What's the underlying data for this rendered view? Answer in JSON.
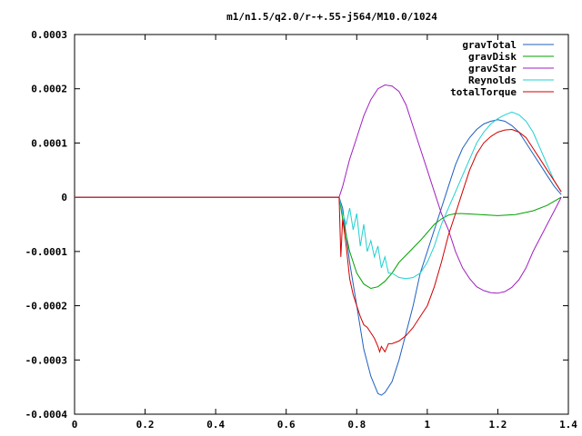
{
  "chart_data": {
    "type": "line",
    "title": "m1/n1.5/q2.0/r-+.55-j564/M10.0/1024",
    "xlabel": "",
    "ylabel": "",
    "xlim": [
      0,
      1.4
    ],
    "ylim": [
      -0.0004,
      0.0003
    ],
    "xticks": [
      0,
      0.2,
      0.4,
      0.6,
      0.8,
      1,
      1.2,
      1.4
    ],
    "xtick_labels": [
      "0",
      "0.2",
      "0.4",
      "0.6",
      "0.8",
      "1",
      "1.2",
      "1.4"
    ],
    "yticks": [
      -0.0004,
      -0.0003,
      -0.0002,
      -0.0001,
      0,
      0.0001,
      0.0002,
      0.0003
    ],
    "ytick_labels": [
      "-0.0004",
      "-0.0003",
      "-0.0002",
      "-0.0001",
      "0",
      "0.0001",
      "0.0002",
      "0.0003"
    ],
    "grid": false,
    "legend_position": "top-right",
    "series": [
      {
        "name": "gravTotal",
        "color": "#1f5fbf",
        "points": [
          [
            0,
            0
          ],
          [
            0.75,
            0
          ],
          [
            0.76,
            -2e-05
          ],
          [
            0.78,
            -0.00012
          ],
          [
            0.8,
            -0.0002
          ],
          [
            0.82,
            -0.00028
          ],
          [
            0.84,
            -0.00033
          ],
          [
            0.86,
            -0.000362
          ],
          [
            0.87,
            -0.000365
          ],
          [
            0.88,
            -0.00036
          ],
          [
            0.9,
            -0.00034
          ],
          [
            0.92,
            -0.0003
          ],
          [
            0.94,
            -0.00025
          ],
          [
            0.96,
            -0.0002
          ],
          [
            0.98,
            -0.00014
          ],
          [
            1.0,
            -0.0001
          ],
          [
            1.02,
            -6e-05
          ],
          [
            1.04,
            -2e-05
          ],
          [
            1.06,
            2e-05
          ],
          [
            1.08,
            6e-05
          ],
          [
            1.1,
            9e-05
          ],
          [
            1.12,
            0.00011
          ],
          [
            1.14,
            0.000125
          ],
          [
            1.16,
            0.000135
          ],
          [
            1.18,
            0.00014
          ],
          [
            1.2,
            0.000143
          ],
          [
            1.22,
            0.00014
          ],
          [
            1.24,
            0.000132
          ],
          [
            1.26,
            0.00012
          ],
          [
            1.28,
            0.0001
          ],
          [
            1.3,
            8e-05
          ],
          [
            1.32,
            6e-05
          ],
          [
            1.34,
            4e-05
          ],
          [
            1.36,
            2e-05
          ],
          [
            1.38,
            5e-06
          ]
        ]
      },
      {
        "name": "gravDisk",
        "color": "#00a000",
        "points": [
          [
            0,
            0
          ],
          [
            0.75,
            0
          ],
          [
            0.76,
            -4e-05
          ],
          [
            0.78,
            -0.0001
          ],
          [
            0.8,
            -0.00014
          ],
          [
            0.82,
            -0.00016
          ],
          [
            0.84,
            -0.000168
          ],
          [
            0.86,
            -0.000165
          ],
          [
            0.88,
            -0.000155
          ],
          [
            0.9,
            -0.00014
          ],
          [
            0.92,
            -0.00012
          ],
          [
            0.95,
            -0.0001
          ],
          [
            0.98,
            -8e-05
          ],
          [
            1.0,
            -6.5e-05
          ],
          [
            1.02,
            -5e-05
          ],
          [
            1.04,
            -4e-05
          ],
          [
            1.06,
            -3.3e-05
          ],
          [
            1.08,
            -3e-05
          ],
          [
            1.1,
            -3e-05
          ],
          [
            1.15,
            -3.2e-05
          ],
          [
            1.2,
            -3.4e-05
          ],
          [
            1.25,
            -3.2e-05
          ],
          [
            1.3,
            -2.5e-05
          ],
          [
            1.34,
            -1.5e-05
          ],
          [
            1.38,
            0
          ]
        ]
      },
      {
        "name": "gravStar",
        "color": "#a020c0",
        "points": [
          [
            0,
            0
          ],
          [
            0.75,
            0
          ],
          [
            0.76,
            2e-05
          ],
          [
            0.78,
            7e-05
          ],
          [
            0.8,
            0.00011
          ],
          [
            0.82,
            0.00015
          ],
          [
            0.84,
            0.00018
          ],
          [
            0.86,
            0.0002
          ],
          [
            0.88,
            0.000207
          ],
          [
            0.9,
            0.000205
          ],
          [
            0.92,
            0.000195
          ],
          [
            0.94,
            0.00017
          ],
          [
            0.96,
            0.00013
          ],
          [
            0.98,
            9e-05
          ],
          [
            1.0,
            5e-05
          ],
          [
            1.02,
            1e-05
          ],
          [
            1.04,
            -3e-05
          ],
          [
            1.06,
            -6e-05
          ],
          [
            1.08,
            -0.0001
          ],
          [
            1.1,
            -0.00013
          ],
          [
            1.12,
            -0.00015
          ],
          [
            1.14,
            -0.000165
          ],
          [
            1.16,
            -0.000172
          ],
          [
            1.18,
            -0.000176
          ],
          [
            1.2,
            -0.000177
          ],
          [
            1.22,
            -0.000174
          ],
          [
            1.24,
            -0.000166
          ],
          [
            1.26,
            -0.000152
          ],
          [
            1.28,
            -0.00013
          ],
          [
            1.3,
            -0.0001
          ],
          [
            1.32,
            -7.5e-05
          ],
          [
            1.34,
            -5e-05
          ],
          [
            1.36,
            -2.5e-05
          ],
          [
            1.38,
            0
          ]
        ]
      },
      {
        "name": "Reynolds",
        "color": "#20d0d0",
        "points": [
          [
            0,
            0
          ],
          [
            0.75,
            0
          ],
          [
            0.76,
            -3e-05
          ],
          [
            0.77,
            -5e-05
          ],
          [
            0.78,
            -2e-05
          ],
          [
            0.79,
            -6e-05
          ],
          [
            0.8,
            -3e-05
          ],
          [
            0.81,
            -9e-05
          ],
          [
            0.82,
            -5e-05
          ],
          [
            0.83,
            -0.0001
          ],
          [
            0.84,
            -8e-05
          ],
          [
            0.85,
            -0.00011
          ],
          [
            0.86,
            -9e-05
          ],
          [
            0.87,
            -0.00013
          ],
          [
            0.88,
            -0.00011
          ],
          [
            0.89,
            -0.00014
          ],
          [
            0.9,
            -0.00014
          ],
          [
            0.92,
            -0.000148
          ],
          [
            0.94,
            -0.00015
          ],
          [
            0.96,
            -0.000148
          ],
          [
            0.98,
            -0.00014
          ],
          [
            1.0,
            -0.00012
          ],
          [
            1.02,
            -9e-05
          ],
          [
            1.04,
            -5e-05
          ],
          [
            1.06,
            -2e-05
          ],
          [
            1.08,
            1e-05
          ],
          [
            1.1,
            4e-05
          ],
          [
            1.12,
            7e-05
          ],
          [
            1.14,
            0.0001
          ],
          [
            1.16,
            0.00012
          ],
          [
            1.18,
            0.000135
          ],
          [
            1.2,
            0.000145
          ],
          [
            1.22,
            0.000152
          ],
          [
            1.24,
            0.000157
          ],
          [
            1.26,
            0.000152
          ],
          [
            1.28,
            0.00014
          ],
          [
            1.3,
            0.00012
          ],
          [
            1.32,
            9e-05
          ],
          [
            1.34,
            6e-05
          ],
          [
            1.36,
            3e-05
          ],
          [
            1.38,
            1e-05
          ]
        ]
      },
      {
        "name": "totalTorque",
        "color": "#d00000",
        "points": [
          [
            0,
            0
          ],
          [
            0.75,
            0
          ],
          [
            0.755,
            -0.00011
          ],
          [
            0.76,
            -4e-05
          ],
          [
            0.77,
            -9e-05
          ],
          [
            0.78,
            -0.00015
          ],
          [
            0.79,
            -0.00018
          ],
          [
            0.8,
            -0.0002
          ],
          [
            0.81,
            -0.00022
          ],
          [
            0.82,
            -0.000235
          ],
          [
            0.83,
            -0.00024
          ],
          [
            0.84,
            -0.00025
          ],
          [
            0.85,
            -0.00026
          ],
          [
            0.86,
            -0.000275
          ],
          [
            0.865,
            -0.000285
          ],
          [
            0.87,
            -0.000275
          ],
          [
            0.88,
            -0.000285
          ],
          [
            0.89,
            -0.00027
          ],
          [
            0.9,
            -0.00027
          ],
          [
            0.92,
            -0.000265
          ],
          [
            0.94,
            -0.000255
          ],
          [
            0.96,
            -0.00024
          ],
          [
            0.98,
            -0.00022
          ],
          [
            1.0,
            -0.0002
          ],
          [
            1.02,
            -0.000165
          ],
          [
            1.04,
            -0.00012
          ],
          [
            1.06,
            -7e-05
          ],
          [
            1.08,
            -3e-05
          ],
          [
            1.1,
            1e-05
          ],
          [
            1.12,
            5e-05
          ],
          [
            1.14,
            8e-05
          ],
          [
            1.16,
            0.0001
          ],
          [
            1.18,
            0.000112
          ],
          [
            1.2,
            0.00012
          ],
          [
            1.22,
            0.000124
          ],
          [
            1.24,
            0.000125
          ],
          [
            1.26,
            0.00012
          ],
          [
            1.28,
            0.00011
          ],
          [
            1.3,
            9e-05
          ],
          [
            1.32,
            7e-05
          ],
          [
            1.34,
            5e-05
          ],
          [
            1.36,
            3e-05
          ],
          [
            1.38,
            1e-05
          ]
        ]
      }
    ]
  }
}
